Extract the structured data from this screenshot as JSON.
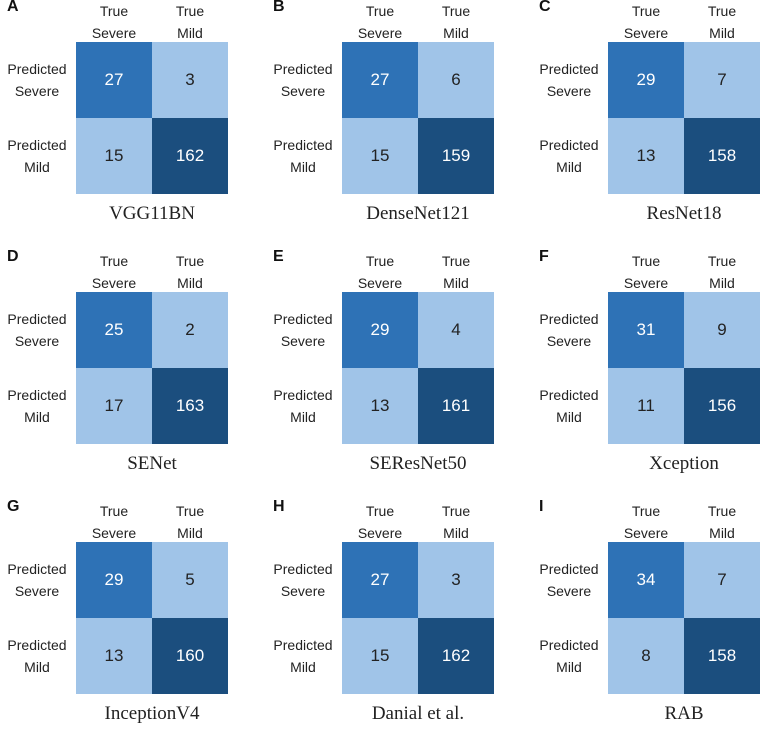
{
  "colors": {
    "tp": "#2e72b6",
    "light": "#a0c4e8",
    "tn": "#1b4e7e",
    "text_dark_cell": "#ffffff",
    "text_light_cell": "#222222"
  },
  "labels": {
    "col_true_severe": [
      "True",
      "Severe"
    ],
    "col_true_mild": [
      "True",
      "Mild"
    ],
    "row_pred_severe": [
      "Predicted",
      "Severe"
    ],
    "row_pred_mild": [
      "Predicted",
      "Mild"
    ]
  },
  "chart_data": [
    {
      "type": "heatmap",
      "letter": "A",
      "title": "VGG11BN",
      "rows": [
        "Predicted Severe",
        "Predicted Mild"
      ],
      "cols": [
        "True Severe",
        "True Mild"
      ],
      "matrix": [
        [
          27,
          3
        ],
        [
          15,
          162
        ]
      ]
    },
    {
      "type": "heatmap",
      "letter": "B",
      "title": "DenseNet121",
      "rows": [
        "Predicted Severe",
        "Predicted Mild"
      ],
      "cols": [
        "True Severe",
        "True Mild"
      ],
      "matrix": [
        [
          27,
          6
        ],
        [
          15,
          159
        ]
      ]
    },
    {
      "type": "heatmap",
      "letter": "C",
      "title": "ResNet18",
      "rows": [
        "Predicted Severe",
        "Predicted Mild"
      ],
      "cols": [
        "True Severe",
        "True Mild"
      ],
      "matrix": [
        [
          29,
          7
        ],
        [
          13,
          158
        ]
      ]
    },
    {
      "type": "heatmap",
      "letter": "D",
      "title": "SENet",
      "rows": [
        "Predicted Severe",
        "Predicted Mild"
      ],
      "cols": [
        "True Severe",
        "True Mild"
      ],
      "matrix": [
        [
          25,
          2
        ],
        [
          17,
          163
        ]
      ]
    },
    {
      "type": "heatmap",
      "letter": "E",
      "title": "SEResNet50",
      "rows": [
        "Predicted Severe",
        "Predicted Mild"
      ],
      "cols": [
        "True Severe",
        "True Mild"
      ],
      "matrix": [
        [
          29,
          4
        ],
        [
          13,
          161
        ]
      ]
    },
    {
      "type": "heatmap",
      "letter": "F",
      "title": "Xception",
      "rows": [
        "Predicted Severe",
        "Predicted Mild"
      ],
      "cols": [
        "True Severe",
        "True Mild"
      ],
      "matrix": [
        [
          31,
          9
        ],
        [
          11,
          156
        ]
      ]
    },
    {
      "type": "heatmap",
      "letter": "G",
      "title": "InceptionV4",
      "rows": [
        "Predicted Severe",
        "Predicted Mild"
      ],
      "cols": [
        "True Severe",
        "True Mild"
      ],
      "matrix": [
        [
          29,
          5
        ],
        [
          13,
          160
        ]
      ]
    },
    {
      "type": "heatmap",
      "letter": "H",
      "title": "Danial et al.",
      "rows": [
        "Predicted Severe",
        "Predicted Mild"
      ],
      "cols": [
        "True Severe",
        "True Mild"
      ],
      "matrix": [
        [
          27,
          3
        ],
        [
          15,
          162
        ]
      ]
    },
    {
      "type": "heatmap",
      "letter": "I",
      "title": "RAB",
      "rows": [
        "Predicted Severe",
        "Predicted Mild"
      ],
      "cols": [
        "True Severe",
        "True Mild"
      ],
      "matrix": [
        [
          34,
          7
        ],
        [
          8,
          158
        ]
      ]
    }
  ]
}
